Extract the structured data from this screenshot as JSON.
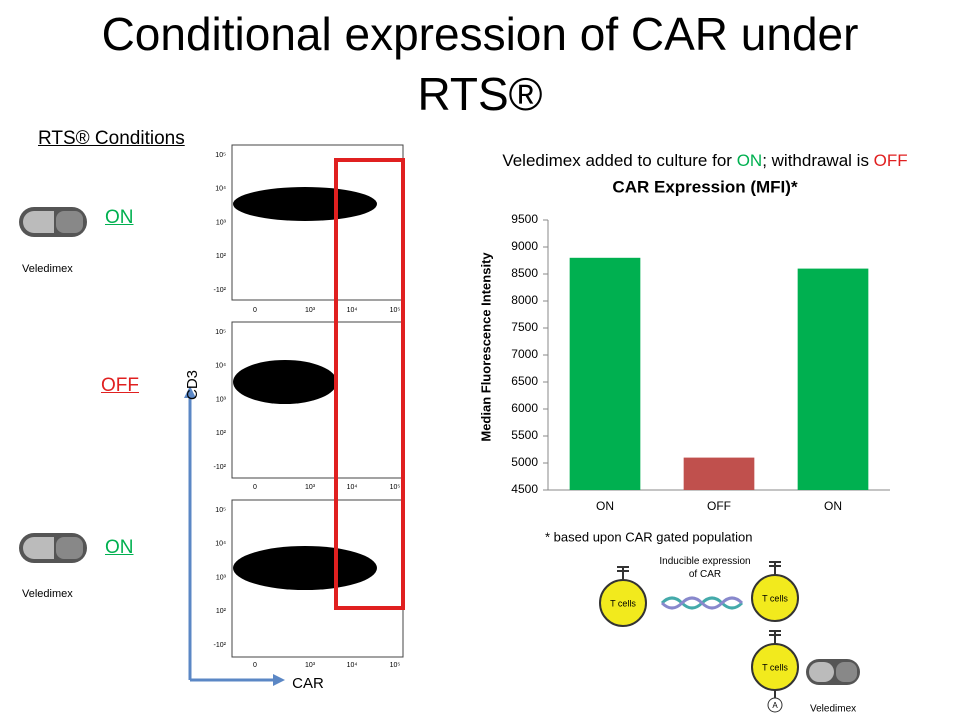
{
  "title": "Conditional expression of CAR under RTS®",
  "conditions": {
    "heading": "RTS® Conditions",
    "items": [
      {
        "label": "ON",
        "drug": "Veledimex"
      },
      {
        "label": "OFF"
      },
      {
        "label": "ON",
        "drug": "Veledimex"
      }
    ]
  },
  "flow": {
    "y_label": "CD3",
    "x_label": "CAR",
    "y_ticks": [
      "10⁵",
      "10⁴",
      "10³",
      "10²",
      "-10²"
    ],
    "x_ticks": [
      "0",
      "10³",
      "10⁴",
      "10⁵"
    ]
  },
  "chart_data": {
    "type": "bar",
    "caption": [
      "Veledimex added to culture for ",
      "ON",
      "; withdrawal is ",
      "OFF"
    ],
    "title": "CAR Expression (MFI)*",
    "y_label": "Median Fluorescence Intensity",
    "categories": [
      "ON",
      "OFF",
      "ON"
    ],
    "values": [
      8800,
      5100,
      8600
    ],
    "colors": [
      "#00b050",
      "#c0504d",
      "#00b050"
    ],
    "ylim": [
      4500,
      9500
    ],
    "yticks": [
      4500,
      5000,
      5500,
      6000,
      6500,
      7000,
      7500,
      8000,
      8500,
      9000,
      9500
    ],
    "footnote": "* based upon CAR gated population"
  },
  "diagram": {
    "inducible": "Inducible expression of CAR",
    "cells": [
      "T cells",
      "T cells",
      "T cells"
    ],
    "activator": "A",
    "drug": "Veledimex"
  }
}
